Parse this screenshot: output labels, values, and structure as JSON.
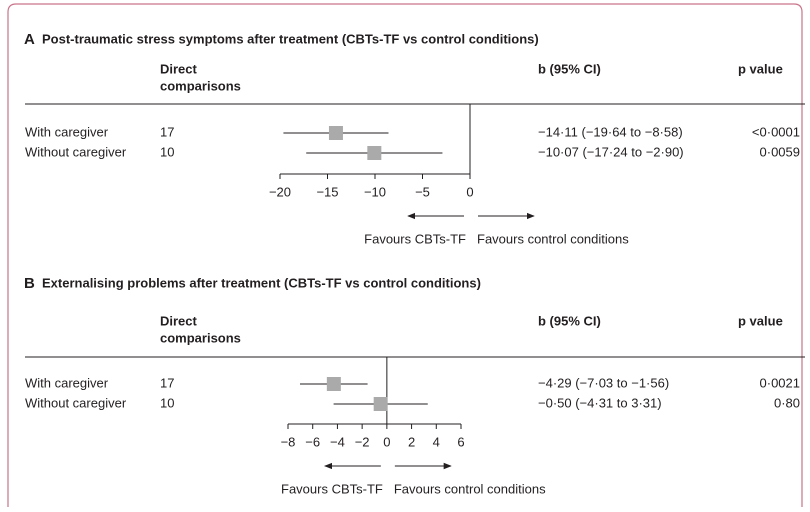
{
  "chart_data": [
    {
      "type": "forest",
      "panel": "A",
      "title": "Post-traumatic stress symptoms after treatment (CBTs-TF vs control conditions)",
      "header_comparisons": [
        "Direct",
        "comparisons"
      ],
      "header_estimate": "b (95% CI)",
      "header_p": "p value",
      "categories": [
        "With caregiver",
        "Without caregiver"
      ],
      "comparisons": [
        17,
        10
      ],
      "values": [
        -14.11,
        -10.07
      ],
      "lower": [
        -19.64,
        -17.24
      ],
      "upper": [
        -8.58,
        -2.9
      ],
      "value_labels": [
        "−14·11 (−19·64 to −8·58)",
        "−10·07 (−17·24 to −2·90)"
      ],
      "p_values": [
        "<0·0001",
        "0·0059"
      ],
      "xlim": [
        -20,
        0
      ],
      "xticks": [
        {
          "value": -20,
          "label": "−20"
        },
        {
          "value": -15,
          "label": "−15"
        },
        {
          "value": -10,
          "label": "−10"
        },
        {
          "value": -5,
          "label": "−5"
        },
        0
      ],
      "arrow_labels": [
        "Favours CBTs-TF",
        "Favours control conditions"
      ],
      "color": "#aaaaaa"
    },
    {
      "type": "forest",
      "panel": "B",
      "title": "Externalising problems after treatment (CBTs-TF vs control conditions)",
      "header_comparisons": [
        "Direct",
        "comparisons"
      ],
      "header_estimate": "b (95% CI)",
      "header_p": "p value",
      "categories": [
        "With caregiver",
        "Without caregiver"
      ],
      "comparisons": [
        17,
        10
      ],
      "values": [
        -4.29,
        -0.5
      ],
      "lower": [
        -7.03,
        -4.31
      ],
      "upper": [
        -1.56,
        3.31
      ],
      "value_labels": [
        "−4·29 (−7·03 to −1·56)",
        "−0·50 (−4·31 to 3·31)"
      ],
      "p_values": [
        "0·0021",
        "0·80"
      ],
      "xlim": [
        -8,
        6
      ],
      "xticks": [
        {
          "value": -8,
          "label": "−8"
        },
        {
          "value": -6,
          "label": "−6"
        },
        {
          "value": -4,
          "label": "−4"
        },
        {
          "value": -2,
          "label": "−2"
        },
        0,
        2,
        4,
        6
      ],
      "arrow_labels": [
        "Favours CBTs-TF",
        "Favours control conditions"
      ],
      "color": "#aaaaaa"
    }
  ]
}
